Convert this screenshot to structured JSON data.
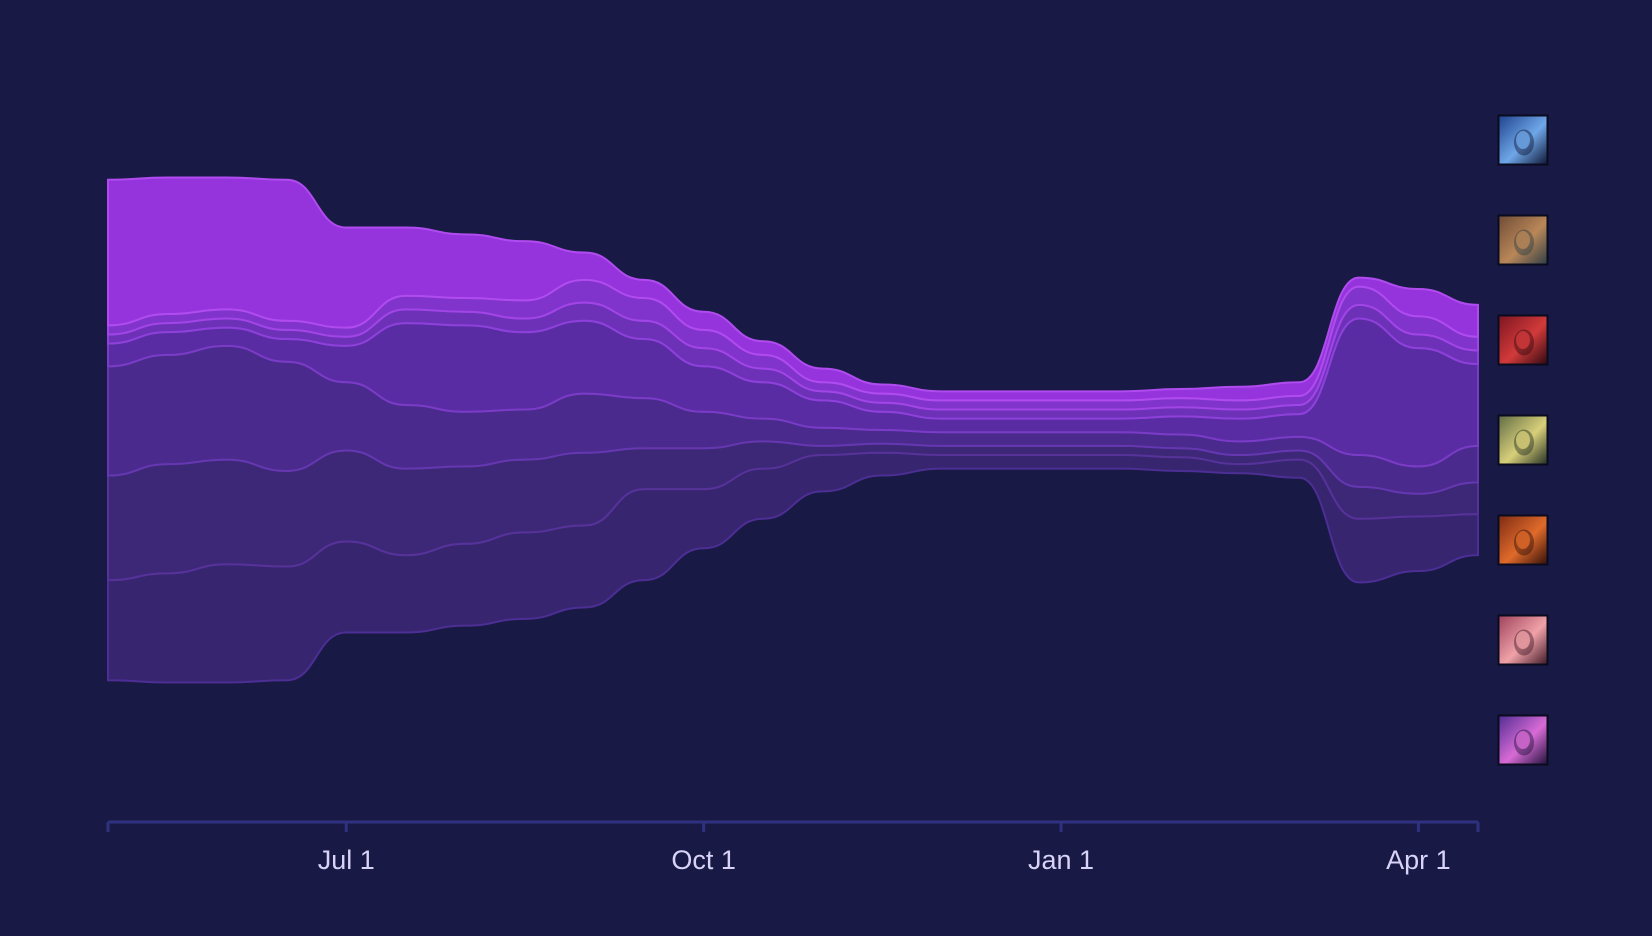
{
  "colors": {
    "background": "#181a45",
    "axis": "#2f3180",
    "tick_label": "#d8d3f7",
    "layers": [
      "#372570",
      "#3d2878",
      "#4a2a8c",
      "#5a2ca3",
      "#6d31b8",
      "#8134cc",
      "#9534dc"
    ],
    "layer_strokes": [
      "#4c2e94",
      "#563299",
      "#6537b0",
      "#7a3cc7",
      "#8e41da",
      "#a145e6",
      "#b04bef"
    ]
  },
  "legend": {
    "items": [
      {
        "icon": "dark-hooded-assassin-portrait-icon",
        "colors": [
          "#1d3f8a",
          "#6fa7e8",
          "#0c1230"
        ]
      },
      {
        "icon": "furry-beast-brawler-portrait-icon",
        "colors": [
          "#6d4a35",
          "#b98758",
          "#2a3c45"
        ]
      },
      {
        "icon": "red-demon-mage-portrait-icon",
        "colors": [
          "#7a1420",
          "#d23a3a",
          "#2a0810"
        ]
      },
      {
        "icon": "golden-armored-warrior-portrait-icon",
        "colors": [
          "#5d6a43",
          "#d8cf7a",
          "#1e2a20"
        ]
      },
      {
        "icon": "red-bearded-dwarf-portrait-icon",
        "colors": [
          "#7a2a12",
          "#e06a2b",
          "#2c0d08"
        ]
      },
      {
        "icon": "pink-haired-fighter-portrait-icon",
        "colors": [
          "#9c3f5a",
          "#f0a2a8",
          "#3a1523"
        ]
      },
      {
        "icon": "purple-fanged-beast-portrait-icon",
        "colors": [
          "#4c2b90",
          "#d86bd6",
          "#1a0f35"
        ]
      }
    ]
  },
  "chart_data": {
    "type": "area",
    "subtype": "streamgraph",
    "title": "",
    "xlabel": "",
    "ylabel": "",
    "x_tick_labels": [
      "Jul 1",
      "Oct 1",
      "Jan 1",
      "Apr 1"
    ],
    "x_tick_dates": [
      "Jul 1",
      "Oct 1",
      "Jan 1",
      "Apr 1"
    ],
    "x": [
      "May 1",
      "May 16",
      "Jun 1",
      "Jun 16",
      "Jul 1",
      "Jul 16",
      "Aug 1",
      "Aug 16",
      "Sep 1",
      "Sep 16",
      "Oct 1",
      "Oct 16",
      "Nov 1",
      "Nov 16",
      "Dec 1",
      "Dec 16",
      "Jan 1",
      "Jan 16",
      "Feb 1",
      "Feb 16",
      "Mar 1",
      "Mar 16",
      "Apr 1",
      "Apr 16"
    ],
    "grid": false,
    "legend_position": "right",
    "series": [
      {
        "values": [
          22,
          24,
          26,
          25,
          20,
          17,
          18,
          19,
          18,
          20,
          13,
          11,
          8,
          5,
          3,
          3,
          3,
          3,
          3,
          2,
          4,
          14,
          12,
          9
        ]
      },
      {
        "values": [
          23,
          24,
          23,
          21,
          20,
          19,
          17,
          16,
          16,
          9,
          9,
          6,
          2,
          2,
          2,
          2,
          2,
          2,
          2,
          2,
          2,
          7,
          5,
          7
        ]
      },
      {
        "values": [
          24,
          24,
          25,
          24,
          15,
          14,
          12,
          11,
          13,
          11,
          8,
          5,
          4,
          3,
          3,
          3,
          3,
          3,
          3,
          3,
          3,
          7,
          6,
          8
        ]
      },
      {
        "values": [
          5,
          5,
          4,
          5,
          8,
          18,
          19,
          17,
          16,
          13,
          10,
          8,
          6,
          4,
          3,
          3,
          3,
          3,
          4,
          5,
          5,
          30,
          26,
          18
        ]
      },
      {
        "values": [
          2,
          2,
          2,
          2,
          2,
          3,
          3,
          3,
          4,
          4,
          4,
          3,
          2,
          2,
          2,
          2,
          2,
          2,
          2,
          2,
          2,
          3,
          3,
          3
        ]
      },
      {
        "values": [
          2,
          2,
          2,
          2,
          2,
          3,
          3,
          4,
          5,
          5,
          4,
          3,
          2,
          2,
          2,
          2,
          2,
          2,
          2,
          2,
          2,
          4,
          4,
          3
        ]
      },
      {
        "values": [
          32,
          30,
          29,
          31,
          22,
          15,
          14,
          13,
          6,
          4,
          4,
          3,
          3,
          2,
          2,
          2,
          2,
          2,
          2,
          3,
          3,
          2,
          6,
          7
        ]
      }
    ]
  }
}
